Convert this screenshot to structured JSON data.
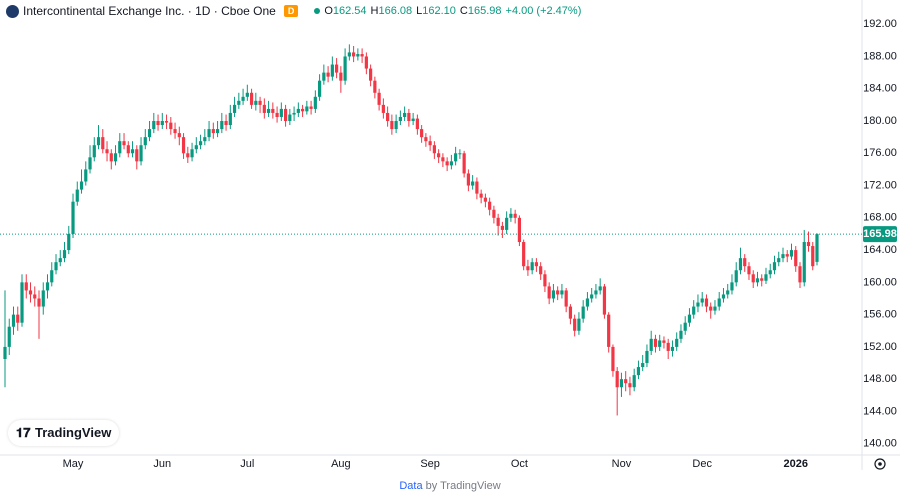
{
  "header": {
    "title": "Intercontinental Exchange Inc. · 1D · Cboe One",
    "badge": "D",
    "ohlc": [
      {
        "label": "O",
        "value": "162.54"
      },
      {
        "label": "H",
        "value": "166.08"
      },
      {
        "label": "L",
        "value": "162.10"
      },
      {
        "label": "C",
        "value": "165.98"
      }
    ],
    "change": "+4.00 (+2.47%)"
  },
  "logo": "TradingView",
  "footer": {
    "source": "Data",
    "by": "by TradingView"
  },
  "chart_data": {
    "type": "candlestick",
    "up_color": "#089981",
    "down_color": "#f23645",
    "grid": false,
    "ylim": [
      138.6,
      195
    ],
    "yticks": [
      {
        "value": 140,
        "label": "140.00"
      },
      {
        "value": 144,
        "label": "144.00"
      },
      {
        "value": 148,
        "label": "148.00"
      },
      {
        "value": 152,
        "label": "152.00"
      },
      {
        "value": 156,
        "label": "156.00"
      },
      {
        "value": 160,
        "label": "160.00"
      },
      {
        "value": 164,
        "label": "164.00"
      },
      {
        "value": 168,
        "label": "168.00"
      },
      {
        "value": 172,
        "label": "172.00"
      },
      {
        "value": 176,
        "label": "176.00"
      },
      {
        "value": 180,
        "label": "180.00"
      },
      {
        "value": 184,
        "label": "184.00"
      },
      {
        "value": 188,
        "label": "188.00"
      },
      {
        "value": 192,
        "label": "192.00"
      }
    ],
    "last_price_label": "165.98",
    "categories": [
      null,
      null,
      null,
      null,
      null,
      null,
      null,
      null,
      null,
      null,
      null,
      null,
      null,
      null,
      null,
      null,
      "May",
      null,
      null,
      null,
      null,
      null,
      null,
      null,
      null,
      null,
      null,
      null,
      null,
      null,
      null,
      null,
      null,
      null,
      null,
      null,
      null,
      "Jun",
      null,
      null,
      null,
      null,
      null,
      null,
      null,
      null,
      null,
      null,
      null,
      null,
      null,
      null,
      null,
      null,
      null,
      null,
      null,
      "Jul",
      null,
      null,
      null,
      null,
      null,
      null,
      null,
      null,
      null,
      null,
      null,
      null,
      null,
      null,
      null,
      null,
      null,
      null,
      null,
      null,
      null,
      "Aug",
      null,
      null,
      null,
      null,
      null,
      null,
      null,
      null,
      null,
      null,
      null,
      null,
      null,
      null,
      null,
      null,
      null,
      null,
      null,
      null,
      "Sep",
      null,
      null,
      null,
      null,
      null,
      null,
      null,
      null,
      null,
      null,
      null,
      null,
      null,
      null,
      null,
      null,
      null,
      null,
      null,
      null,
      "Oct",
      null,
      null,
      null,
      null,
      null,
      null,
      null,
      null,
      null,
      null,
      null,
      null,
      null,
      null,
      null,
      null,
      null,
      null,
      null,
      null,
      null,
      null,
      null,
      "Nov",
      null,
      null,
      null,
      null,
      null,
      null,
      null,
      null,
      null,
      null,
      null,
      null,
      null,
      null,
      null,
      null,
      null,
      null,
      "Dec",
      null,
      null,
      null,
      null,
      null,
      null,
      null,
      null,
      null,
      null,
      null,
      null,
      null,
      null,
      null,
      null,
      null,
      null,
      null,
      null,
      null,
      "2026",
      null,
      null,
      null,
      null,
      null
    ],
    "open": [
      150.5,
      152,
      154.5,
      156,
      155,
      160,
      159,
      158.5,
      158,
      157,
      159,
      160,
      161.5,
      162.5,
      163,
      164,
      166,
      170,
      171.5,
      172.5,
      174,
      175.5,
      177,
      178,
      176.5,
      176,
      175,
      176,
      177.5,
      177,
      176,
      176.5,
      175,
      177,
      178,
      179,
      180,
      179.5,
      180,
      179.8,
      179,
      178.5,
      178,
      176,
      175.5,
      176.5,
      177,
      177.5,
      178,
      179,
      178.5,
      179,
      180,
      179.5,
      181,
      182,
      182.5,
      183,
      183.5,
      182,
      182.5,
      182,
      181,
      181.5,
      181,
      180.5,
      181.5,
      180,
      180.8,
      181,
      181.5,
      181.2,
      181.8,
      181.5,
      183,
      185,
      186,
      185.5,
      187,
      186,
      185,
      188,
      188.5,
      188,
      188.3,
      188,
      186.5,
      185,
      183.5,
      182,
      181,
      180,
      179,
      180,
      180.5,
      181,
      180,
      180.3,
      179,
      178,
      177.5,
      177,
      176,
      175.5,
      175,
      174.5,
      175,
      176,
      176,
      173.5,
      172,
      172.5,
      171,
      170.5,
      170,
      169,
      168,
      167,
      166.5,
      168,
      168.5,
      168,
      165,
      162,
      161.5,
      162.5,
      162,
      161,
      159.5,
      158,
      159,
      158.5,
      159,
      157,
      155.5,
      154,
      155.5,
      157,
      158,
      158.5,
      159,
      159.5,
      156,
      152,
      149,
      147,
      148,
      147.5,
      147,
      148.5,
      149.5,
      150,
      151.5,
      153,
      152,
      152.8,
      152.5,
      151.5,
      152,
      153,
      154,
      155,
      156,
      157,
      157.5,
      158,
      157,
      156.5,
      157,
      158,
      158.5,
      159,
      160,
      161.5,
      163,
      162,
      161,
      160,
      160.5,
      160.2,
      161,
      161.5,
      162.5,
      163,
      163.5,
      163.2,
      164,
      162,
      160,
      165,
      164.5,
      162.54
    ],
    "high": [
      159,
      155.5,
      157,
      157,
      161,
      161,
      160,
      159.5,
      159,
      160,
      161,
      162.5,
      163.5,
      164,
      165,
      167,
      171,
      172.5,
      174,
      175,
      177,
      178,
      179.5,
      179,
      177.5,
      176.5,
      177,
      178.5,
      178.5,
      177.5,
      177.5,
      177,
      178,
      179,
      180,
      181,
      180.8,
      181,
      180.8,
      180.5,
      179.8,
      179.3,
      178.5,
      176.8,
      177.3,
      178,
      178.3,
      179,
      180,
      179.8,
      180,
      181,
      180.8,
      182,
      183,
      183.5,
      184,
      184.5,
      184,
      183.5,
      183,
      182.8,
      182.5,
      182.3,
      181.8,
      182.3,
      182,
      181.5,
      181.8,
      182.3,
      182,
      182.5,
      182.5,
      183.8,
      185.8,
      187,
      186.8,
      188,
      187.8,
      186.8,
      189,
      189.5,
      189.3,
      189,
      189,
      188.5,
      187,
      185.5,
      184,
      182.8,
      181.8,
      180.8,
      180.8,
      181.3,
      181.8,
      181.5,
      181,
      180.8,
      179.5,
      178.5,
      178.2,
      177.5,
      176.5,
      176,
      175.5,
      175.8,
      176.8,
      176.5,
      176.3,
      174,
      173.3,
      173,
      171.5,
      171,
      170.5,
      169.5,
      168.5,
      167.5,
      168.8,
      169.2,
      169,
      168.3,
      165.3,
      162.8,
      163,
      163,
      162.5,
      161.5,
      160,
      159.8,
      159.5,
      159.8,
      159.3,
      157.3,
      156,
      156.3,
      157.8,
      158.8,
      159.3,
      159.8,
      160.5,
      159.8,
      156.3,
      152.3,
      149.5,
      148.8,
      149,
      148.3,
      149.3,
      150.3,
      151,
      152.3,
      154,
      153.5,
      153.5,
      153.3,
      153,
      152.8,
      153.8,
      154.8,
      155.8,
      156.8,
      157.8,
      158.5,
      158.8,
      158.5,
      157.5,
      157.8,
      158.8,
      159.3,
      159.8,
      161,
      162.5,
      164.3,
      163.5,
      162.5,
      161.5,
      161.3,
      161,
      161.8,
      162.3,
      163.3,
      163.8,
      164.3,
      164,
      164.8,
      164.5,
      162.5,
      166.5,
      166.3,
      165,
      166.08
    ],
    "low": [
      147,
      151,
      153.5,
      154,
      154.5,
      158,
      157.5,
      157,
      153,
      156,
      158,
      159.5,
      161,
      162,
      162.5,
      163.5,
      165.5,
      169.5,
      171,
      172,
      173.5,
      175,
      176.5,
      176,
      175,
      174,
      174.5,
      175.5,
      176.5,
      175.5,
      175.5,
      174,
      174.5,
      176.5,
      177.5,
      178.5,
      178.8,
      179,
      179,
      178.3,
      177.8,
      177,
      175.3,
      174.8,
      175,
      176,
      176.5,
      177,
      177.5,
      177.8,
      178,
      178.5,
      178.8,
      179,
      180.5,
      181.5,
      182,
      182.5,
      181.5,
      181.3,
      181,
      180.3,
      180.5,
      180.3,
      179.8,
      180,
      179.3,
      179.5,
      180,
      180.5,
      180.5,
      180.8,
      180.8,
      181,
      182.5,
      184.5,
      184.8,
      185,
      185.3,
      183.5,
      184.5,
      187.5,
      187.3,
      187.5,
      187.2,
      185.8,
      184.3,
      182.8,
      181.3,
      180.3,
      179.3,
      178.3,
      178.5,
      179.5,
      180,
      179.3,
      179.5,
      178.3,
      177.3,
      176.8,
      176.3,
      175.3,
      174.8,
      174.3,
      173.8,
      174,
      174.5,
      175.3,
      173,
      171.3,
      171.5,
      170.3,
      169.8,
      169.3,
      168.3,
      167.3,
      165.8,
      165.5,
      166,
      167.5,
      167.3,
      164.5,
      161.5,
      160.8,
      161,
      161.3,
      160.3,
      158.8,
      157.3,
      157.5,
      157.8,
      158,
      156.3,
      154.8,
      153.3,
      153.5,
      155,
      156.5,
      157.5,
      158,
      158.5,
      155.5,
      151.3,
      148.3,
      143.5,
      145.8,
      146.5,
      146,
      146.5,
      148,
      149,
      149.5,
      151,
      151.3,
      151.5,
      151.8,
      150.5,
      150.8,
      151.5,
      152.5,
      153.5,
      154.5,
      155.5,
      156.3,
      157,
      156.3,
      155.5,
      156,
      156.5,
      157.5,
      158,
      158.5,
      159.5,
      161,
      161.3,
      160.3,
      159.3,
      159.5,
      159.5,
      159.8,
      160.5,
      161,
      162,
      162.5,
      162.5,
      162.8,
      161.3,
      159.3,
      159.5,
      163.8,
      161.5,
      162.1
    ],
    "close": [
      152,
      154.5,
      156,
      155,
      160,
      159,
      158.5,
      158,
      157,
      159,
      160,
      161.5,
      162.5,
      163,
      164,
      166,
      170,
      171.5,
      172.5,
      174,
      175.5,
      177,
      178,
      176.5,
      176,
      175,
      176,
      177.5,
      177,
      176,
      176.5,
      175,
      177,
      178,
      179,
      180,
      179.5,
      180,
      179.8,
      179,
      178.5,
      178,
      176,
      175.5,
      176.5,
      177,
      177.5,
      178,
      179,
      178.5,
      179,
      180,
      179.5,
      181,
      182,
      182.5,
      183,
      183.5,
      182,
      182.5,
      182,
      181,
      181.5,
      181,
      180.5,
      181.5,
      180,
      180.8,
      181,
      181.5,
      181.2,
      181.8,
      181.5,
      183,
      185,
      186,
      185.5,
      187,
      186,
      185,
      188,
      188.5,
      188,
      188.3,
      188,
      186.5,
      185,
      183.5,
      182,
      181,
      180,
      179,
      180,
      180.5,
      181,
      180,
      180.3,
      179,
      178,
      177.5,
      177,
      176,
      175.5,
      175,
      174.5,
      175,
      176,
      176,
      173.5,
      172,
      172.5,
      171,
      170.5,
      170,
      169,
      168,
      167,
      166.5,
      168,
      168.5,
      168,
      165,
      162,
      161.5,
      162.5,
      162,
      161,
      159.5,
      158,
      159,
      158.5,
      159,
      157,
      155.5,
      154,
      155.5,
      157,
      158,
      158.5,
      159,
      159.5,
      156,
      152,
      149,
      147,
      148,
      147.5,
      147,
      148.5,
      149.5,
      150,
      151.5,
      153,
      152,
      152.8,
      152.5,
      151.5,
      152,
      153,
      154,
      155,
      156,
      157,
      157.5,
      158,
      157,
      156.5,
      157,
      158,
      158.5,
      159,
      160,
      161.5,
      163,
      162,
      161,
      160,
      160.5,
      160.2,
      161,
      161.5,
      162.5,
      163,
      163.5,
      163.2,
      164,
      162,
      160,
      165,
      164.5,
      162,
      165.98
    ]
  }
}
